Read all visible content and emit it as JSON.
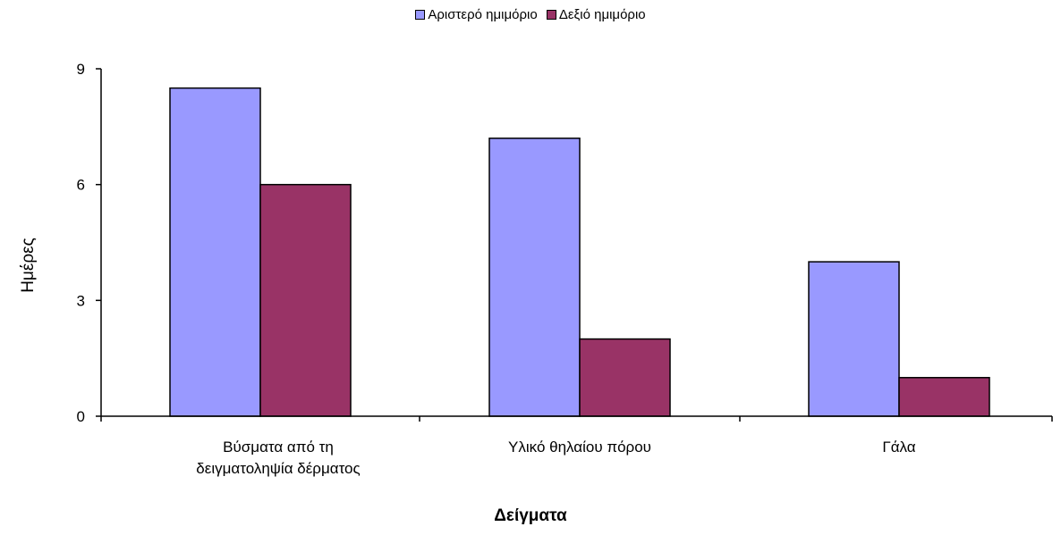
{
  "chart_data": {
    "type": "bar",
    "categories": [
      "Βύσματα από τη\nδειγματοληψία δέρματος",
      "Υλικό θηλαίου πόρου",
      "Γάλα"
    ],
    "series": [
      {
        "name": "Αριστερό ημιμόριο",
        "color": "#9999ff",
        "values": [
          8.5,
          7.2,
          4
        ]
      },
      {
        "name": "Δεξιό ημιμόριο",
        "color": "#993366",
        "values": [
          6,
          2,
          1
        ]
      }
    ],
    "xlabel": "Δείγματα",
    "ylabel": "Ημέρες",
    "ylim": [
      0,
      9
    ],
    "yticks": [
      "0",
      "3",
      "6",
      "9"
    ],
    "legend_position": "top",
    "grid": false
  }
}
